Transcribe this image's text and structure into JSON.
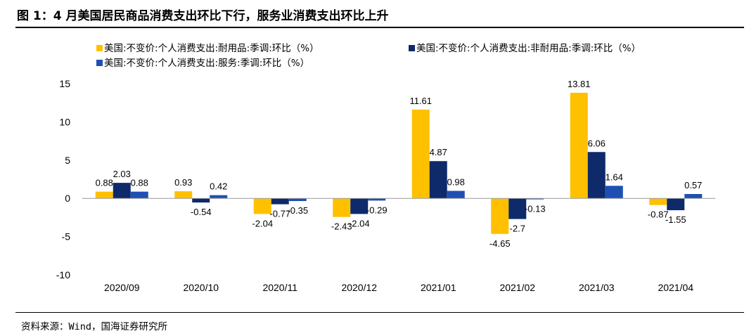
{
  "title": "图 1：4 月美国居民商品消费支出环比下行，服务业消费支出环比上升",
  "source": "资料来源：Wind，国海证券研究所",
  "chart_data": {
    "type": "bar",
    "categories": [
      "2020/09",
      "2020/10",
      "2020/11",
      "2020/12",
      "2021/01",
      "2021/02",
      "2021/03",
      "2021/04"
    ],
    "series": [
      {
        "name": "美国:不变价:个人消费支出:耐用品:季调:环比（%）",
        "color": "#FFC000",
        "values": [
          0.88,
          0.93,
          -2.04,
          -2.43,
          11.61,
          -4.65,
          13.81,
          -0.87
        ]
      },
      {
        "name": "美国:不变价:个人消费支出:非耐用品:季调:环比（%）",
        "color": "#0E2A6B",
        "values": [
          2.03,
          -0.54,
          -0.77,
          -2.04,
          4.87,
          -2.7,
          6.06,
          -1.55
        ]
      },
      {
        "name": "美国:不变价:个人消费支出:服务:季调:环比（%）",
        "color": "#1F4FB4",
        "values": [
          0.88,
          0.42,
          -0.35,
          -0.29,
          0.98,
          -0.13,
          1.64,
          0.57
        ]
      }
    ],
    "y_ticks": [
      15,
      10,
      5,
      0,
      -5,
      -10
    ],
    "ylim": [
      -10,
      15
    ],
    "grid": false,
    "legend_position": "top-left"
  }
}
